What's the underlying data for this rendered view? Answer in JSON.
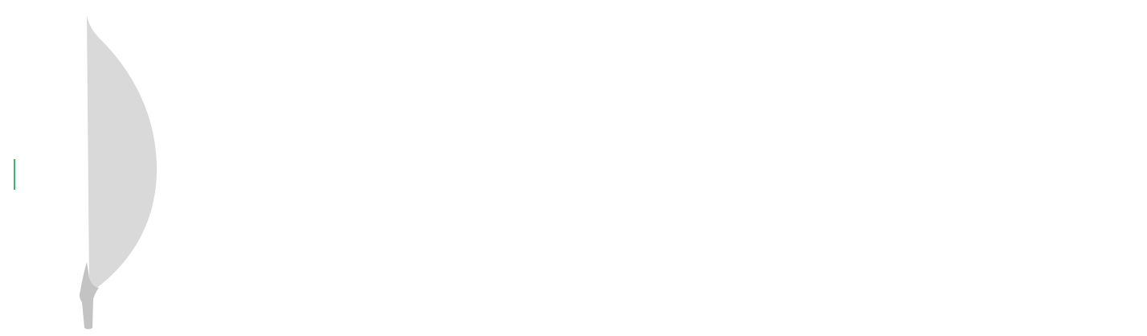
{
  "logo": {
    "icon": "leaf-icon",
    "colors": {
      "leaf_left": "#ffffff",
      "leaf_right": "#d9d9d9",
      "stem": "#c3c3c3",
      "teal_edge": "#13aa52",
      "background": "#ffffff"
    }
  }
}
